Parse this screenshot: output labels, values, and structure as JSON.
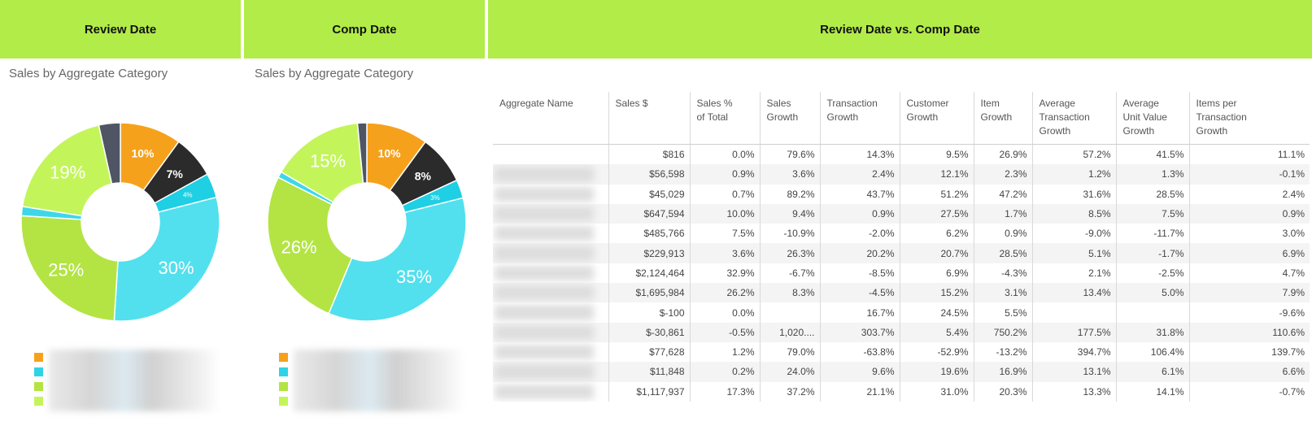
{
  "headers": {
    "review": "Review Date",
    "comp": "Comp Date",
    "vs": "Review Date vs. Comp Date"
  },
  "panels": [
    {
      "subtitle": "Sales by Aggregate Category",
      "slices": [
        {
          "value": 10,
          "label": "10%",
          "color": "#f6a11c"
        },
        {
          "value": 7,
          "label": "7%",
          "color": "#2b2b2b"
        },
        {
          "value": 4,
          "label": "4%",
          "color": "#1fcfe3"
        },
        {
          "value": 30,
          "label": "30%",
          "color": "#52e0ee"
        },
        {
          "value": 25,
          "label": "25%",
          "color": "#b3e444"
        },
        {
          "value": 1.5,
          "label": "",
          "color": "#3ed7ea"
        },
        {
          "value": 19,
          "label": "19%",
          "color": "#c3f55b"
        },
        {
          "value": 3.5,
          "label": "",
          "color": "#4f5562"
        }
      ]
    },
    {
      "subtitle": "Sales by Aggregate Category",
      "slices": [
        {
          "value": 10,
          "label": "10%",
          "color": "#f6a11c"
        },
        {
          "value": 8,
          "label": "8%",
          "color": "#2b2b2b"
        },
        {
          "value": 3,
          "label": "3%",
          "color": "#1fcfe3"
        },
        {
          "value": 35,
          "label": "35%",
          "color": "#52e0ee"
        },
        {
          "value": 26,
          "label": "26%",
          "color": "#b3e444"
        },
        {
          "value": 1,
          "label": "",
          "color": "#3ed7ea"
        },
        {
          "value": 15,
          "label": "15%",
          "color": "#c3f55b"
        },
        {
          "value": 1.5,
          "label": "",
          "color": "#4f5562"
        }
      ]
    }
  ],
  "legend_colors": [
    "#f6a11c",
    "#2fd3e6",
    "#b3e444",
    "#c3f55b"
  ],
  "table": {
    "columns": [
      "Aggregate Name",
      "Sales $",
      "Sales %\nof Total",
      "Sales\nGrowth",
      "Transaction\nGrowth",
      "Customer\nGrowth",
      "Item\nGrowth",
      "Average\nTransaction\nGrowth",
      "Average\nUnit Value\nGrowth",
      "Items per\nTransaction\nGrowth"
    ],
    "rows": [
      [
        "",
        "$816",
        "0.0%",
        "79.6%",
        "14.3%",
        "9.5%",
        "26.9%",
        "57.2%",
        "41.5%",
        "11.1%"
      ],
      [
        "",
        "$56,598",
        "0.9%",
        "3.6%",
        "2.4%",
        "12.1%",
        "2.3%",
        "1.2%",
        "1.3%",
        "-0.1%"
      ],
      [
        "",
        "$45,029",
        "0.7%",
        "89.2%",
        "43.7%",
        "51.2%",
        "47.2%",
        "31.6%",
        "28.5%",
        "2.4%"
      ],
      [
        "",
        "$647,594",
        "10.0%",
        "9.4%",
        "0.9%",
        "27.5%",
        "1.7%",
        "8.5%",
        "7.5%",
        "0.9%"
      ],
      [
        "",
        "$485,766",
        "7.5%",
        "-10.9%",
        "-2.0%",
        "6.2%",
        "0.9%",
        "-9.0%",
        "-11.7%",
        "3.0%"
      ],
      [
        "",
        "$229,913",
        "3.6%",
        "26.3%",
        "20.2%",
        "20.7%",
        "28.5%",
        "5.1%",
        "-1.7%",
        "6.9%"
      ],
      [
        "",
        "$2,124,464",
        "32.9%",
        "-6.7%",
        "-8.5%",
        "6.9%",
        "-4.3%",
        "2.1%",
        "-2.5%",
        "4.7%"
      ],
      [
        "",
        "$1,695,984",
        "26.2%",
        "8.3%",
        "-4.5%",
        "15.2%",
        "3.1%",
        "13.4%",
        "5.0%",
        "7.9%"
      ],
      [
        "",
        "$-100",
        "0.0%",
        "",
        "16.7%",
        "24.5%",
        "5.5%",
        "",
        "",
        "-9.6%"
      ],
      [
        "",
        "$-30,861",
        "-0.5%",
        "1,020....",
        "303.7%",
        "5.4%",
        "750.2%",
        "177.5%",
        "31.8%",
        "110.6%"
      ],
      [
        "",
        "$77,628",
        "1.2%",
        "79.0%",
        "-63.8%",
        "-52.9%",
        "-13.2%",
        "394.7%",
        "106.4%",
        "139.7%"
      ],
      [
        "",
        "$11,848",
        "0.2%",
        "24.0%",
        "9.6%",
        "19.6%",
        "16.9%",
        "13.1%",
        "6.1%",
        "6.6%"
      ],
      [
        "",
        "$1,117,937",
        "17.3%",
        "37.2%",
        "21.1%",
        "31.0%",
        "20.3%",
        "13.3%",
        "14.1%",
        "-0.7%"
      ]
    ]
  }
}
